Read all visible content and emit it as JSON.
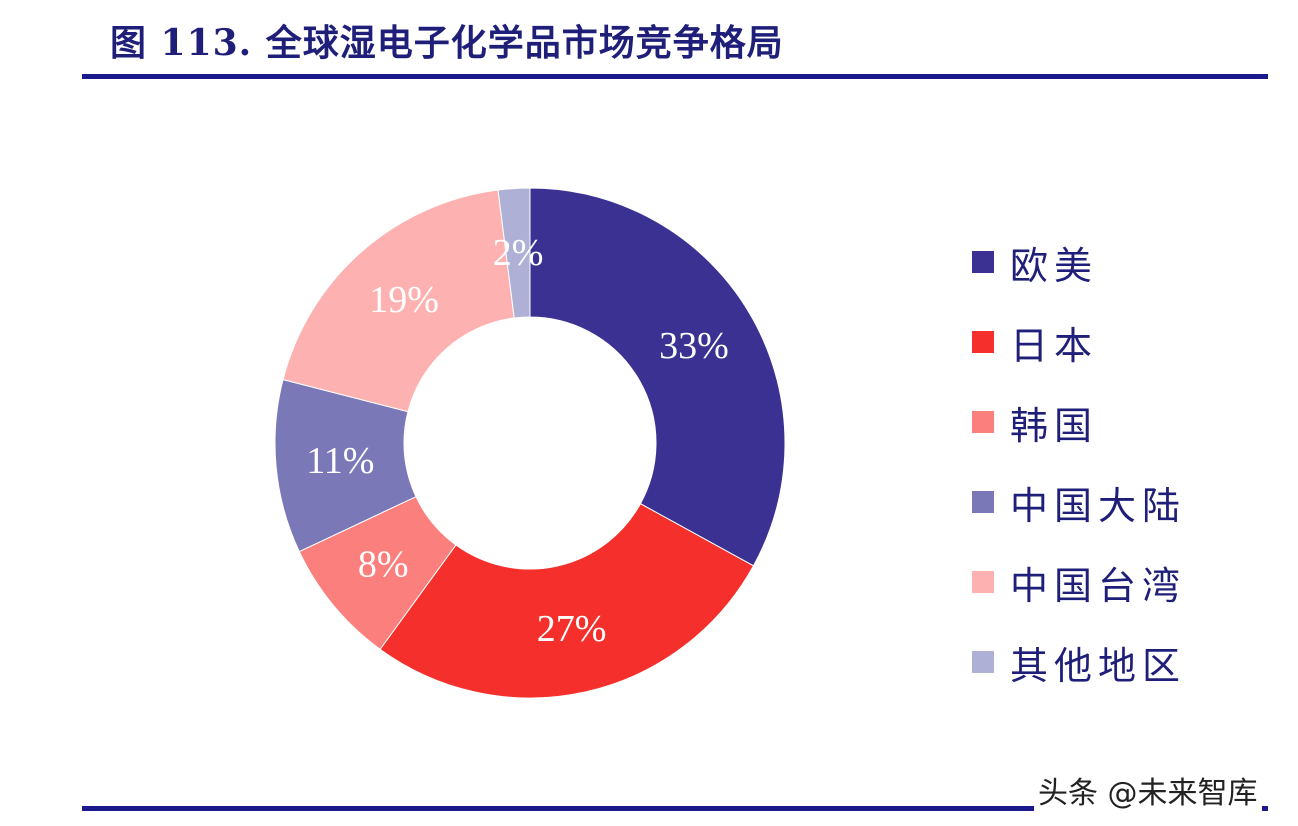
{
  "title": "图 113. 全球湿电子化学品市场竞争格局",
  "watermark": "头条 @未来智库",
  "chart_data": {
    "type": "pie",
    "variant": "donut",
    "title": "图 113. 全球湿电子化学品市场竞争格局",
    "categories": [
      "欧美",
      "日本",
      "韩国",
      "中国大陆",
      "中国台湾",
      "其他地区"
    ],
    "values": [
      33,
      27,
      8,
      11,
      19,
      2
    ],
    "labels": [
      "33%",
      "27%",
      "8%",
      "11%",
      "19%",
      "2%"
    ],
    "colors": [
      "#3a3192",
      "#f5302c",
      "#fb7f7c",
      "#7b78b8",
      "#fdb2b1",
      "#aeb0d6"
    ],
    "unit": "%",
    "start_angle": "12 o'clock",
    "direction": "clockwise",
    "legend_position": "right"
  },
  "legend": {
    "items": [
      {
        "label": "欧美",
        "color": "#3a3192"
      },
      {
        "label": "日本",
        "color": "#f5302c"
      },
      {
        "label": "韩国",
        "color": "#fb7f7c"
      },
      {
        "label": "中国大陆",
        "color": "#7b78b8"
      },
      {
        "label": "中国台湾",
        "color": "#fdb2b1"
      },
      {
        "label": "其他地区",
        "color": "#aeb0d6"
      }
    ]
  }
}
